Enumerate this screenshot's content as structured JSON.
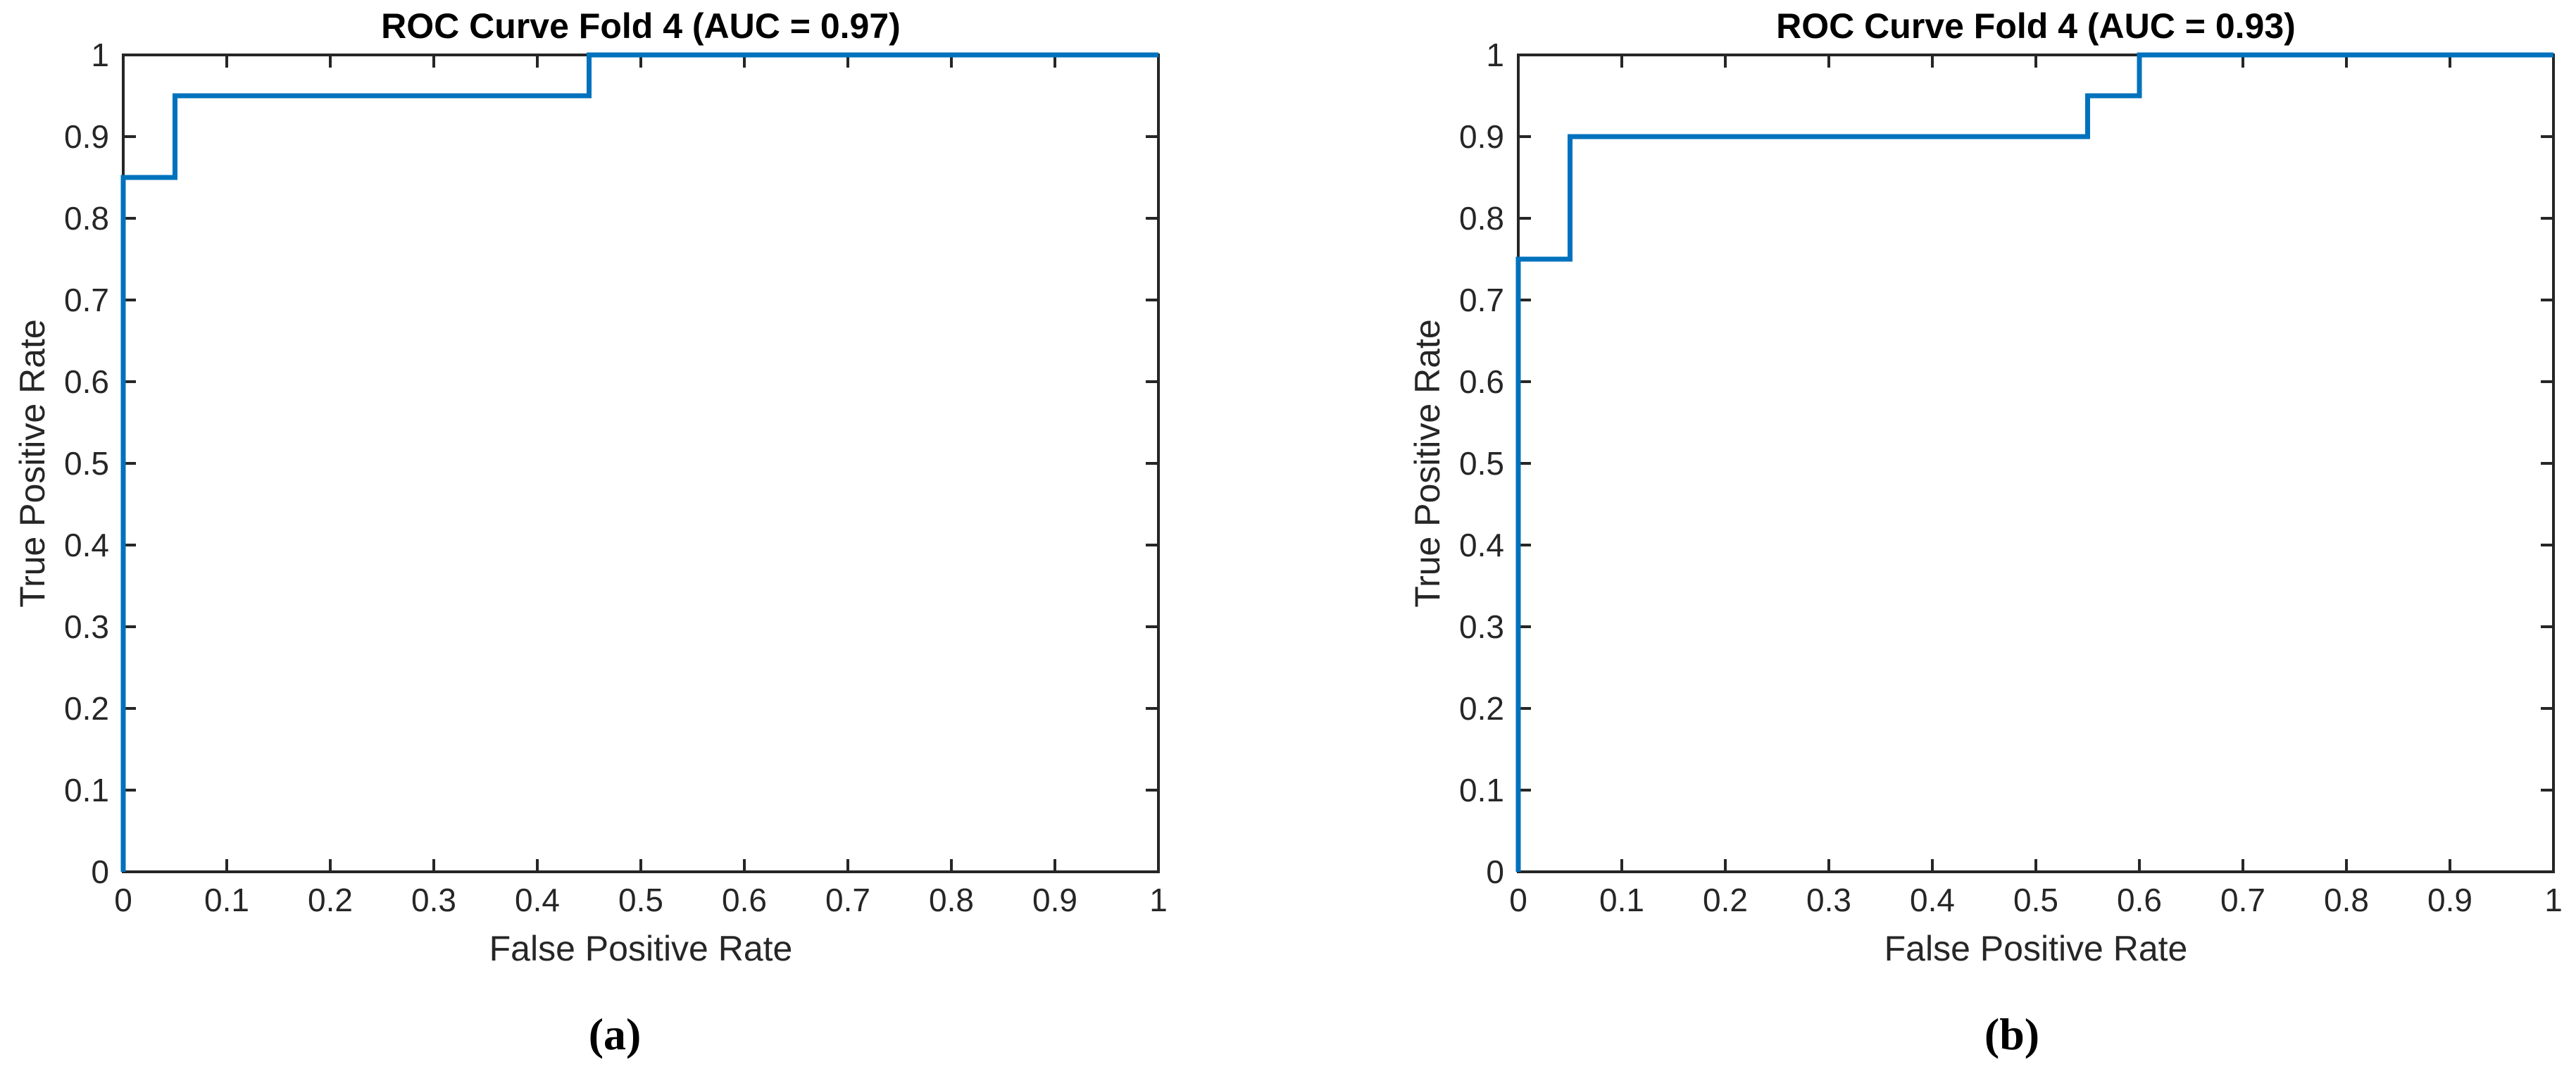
{
  "style": {
    "background": "#ffffff",
    "axis_color": "#262626",
    "tick_label_color": "#262626",
    "title_color": "#000000",
    "curve_color": "#0072BD",
    "curve_width": 7,
    "axis_width": 4,
    "tick_length": 18,
    "tick_font_size": 46
  },
  "chart_data": [
    {
      "type": "line",
      "title": "ROC Curve Fold 4 (AUC = 0.97)",
      "xlabel": "False Positive Rate",
      "ylabel": "True Positive Rate",
      "caption": "(a)",
      "auc": 0.97,
      "xlim": [
        0,
        1
      ],
      "ylim": [
        0,
        1
      ],
      "grid": false,
      "legend": "none",
      "x_tick_values": [
        0,
        0.1,
        0.2,
        0.3,
        0.4,
        0.5,
        0.6,
        0.7,
        0.8,
        0.9,
        1
      ],
      "x_tick_labels": [
        "0",
        "0.1",
        "0.2",
        "0.3",
        "0.4",
        "0.5",
        "0.6",
        "0.7",
        "0.8",
        "0.9",
        "1"
      ],
      "y_tick_values": [
        0,
        0.1,
        0.2,
        0.3,
        0.4,
        0.5,
        0.6,
        0.7,
        0.8,
        0.9,
        1
      ],
      "y_tick_labels": [
        "0",
        "0.1",
        "0.2",
        "0.3",
        "0.4",
        "0.5",
        "0.6",
        "0.7",
        "0.8",
        "0.9",
        "1"
      ],
      "series": [
        {
          "name": "ROC curve",
          "color": "#0072BD",
          "points": [
            [
              0,
              0
            ],
            [
              0,
              0.85
            ],
            [
              0.05,
              0.85
            ],
            [
              0.05,
              0.95
            ],
            [
              0.45,
              0.95
            ],
            [
              0.45,
              1
            ],
            [
              1,
              1
            ]
          ]
        }
      ]
    },
    {
      "type": "line",
      "title": "ROC Curve Fold 4 (AUC = 0.93)",
      "xlabel": "False Positive Rate",
      "ylabel": "True Positive Rate",
      "caption": "(b)",
      "auc": 0.93,
      "xlim": [
        0,
        1
      ],
      "ylim": [
        0,
        1
      ],
      "grid": false,
      "legend": "none",
      "x_tick_values": [
        0,
        0.1,
        0.2,
        0.3,
        0.4,
        0.5,
        0.6,
        0.7,
        0.8,
        0.9,
        1
      ],
      "x_tick_labels": [
        "0",
        "0.1",
        "0.2",
        "0.3",
        "0.4",
        "0.5",
        "0.6",
        "0.7",
        "0.8",
        "0.9",
        "1"
      ],
      "y_tick_values": [
        0,
        0.1,
        0.2,
        0.3,
        0.4,
        0.5,
        0.6,
        0.7,
        0.8,
        0.9,
        1
      ],
      "y_tick_labels": [
        "0",
        "0.1",
        "0.2",
        "0.3",
        "0.4",
        "0.5",
        "0.6",
        "0.7",
        "0.8",
        "0.9",
        "1"
      ],
      "series": [
        {
          "name": "ROC curve",
          "color": "#0072BD",
          "points": [
            [
              0,
              0
            ],
            [
              0,
              0.75
            ],
            [
              0.05,
              0.75
            ],
            [
              0.05,
              0.9
            ],
            [
              0.55,
              0.9
            ],
            [
              0.55,
              0.95
            ],
            [
              0.6,
              0.95
            ],
            [
              0.6,
              1
            ],
            [
              1,
              1
            ]
          ]
        }
      ]
    }
  ]
}
